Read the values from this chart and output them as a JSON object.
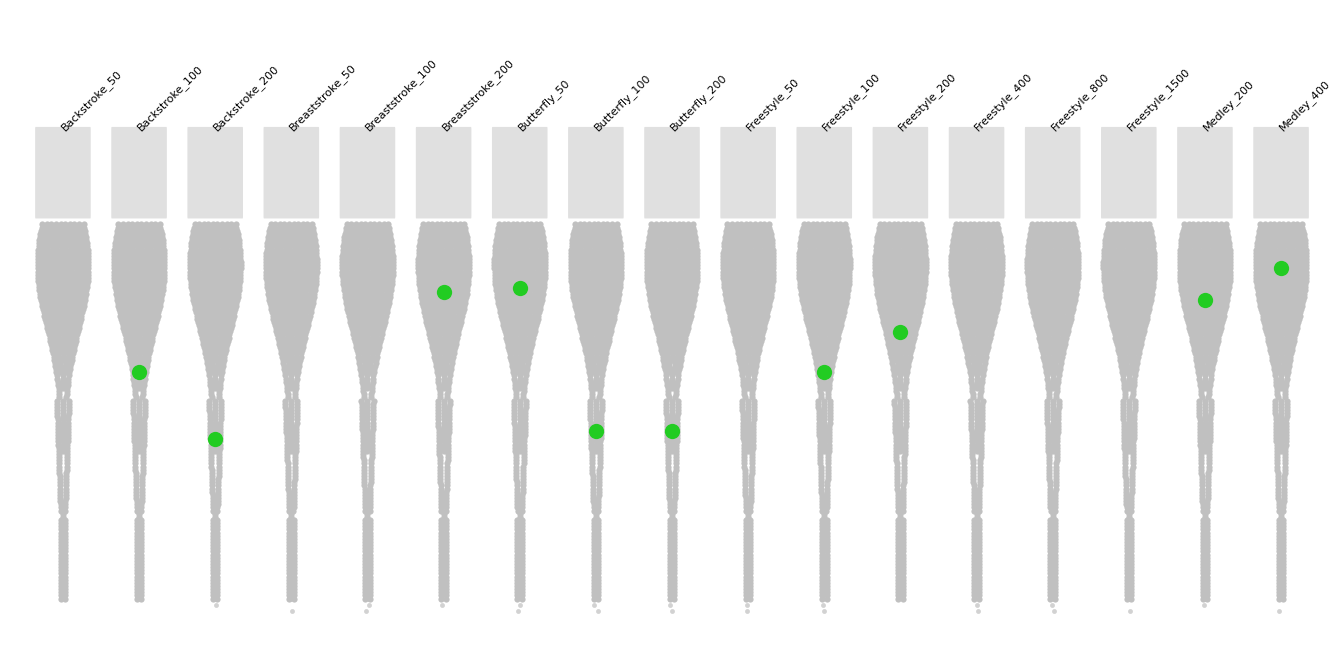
{
  "events": [
    "Backstroke_50",
    "Backstroke_100",
    "Backstroke_200",
    "Breaststroke_50",
    "Breaststroke_100",
    "Breaststroke_200",
    "Butterfly_50",
    "Butterfly_100",
    "Butterfly_200",
    "Freestyle_50",
    "Freestyle_100",
    "Freestyle_200",
    "Freestyle_400",
    "Freestyle_800",
    "Freestyle_1500",
    "Medley_200",
    "Medley_400"
  ],
  "phelps_percentile": [
    null,
    0.38,
    0.55,
    null,
    null,
    0.18,
    0.17,
    0.53,
    0.53,
    null,
    0.38,
    0.28,
    null,
    null,
    null,
    0.2,
    0.12
  ],
  "background_color": "#ffffff",
  "gray_color": "#c0c0c0",
  "green_color": "#22cc22",
  "label_bg": "#e0e0e0"
}
